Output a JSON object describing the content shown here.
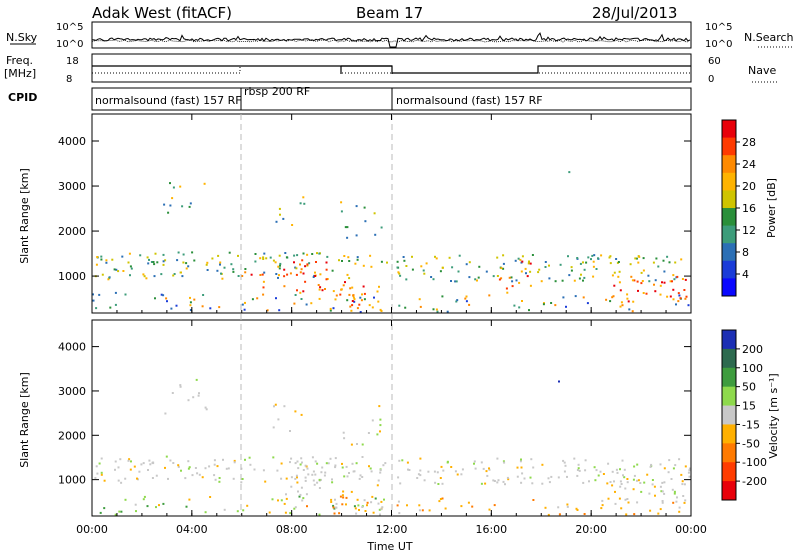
{
  "header": {
    "title": "Adak West (fitACF)",
    "beam": "Beam 17",
    "date": "28/Jul/2013"
  },
  "top_panels": {
    "nsky_label": "N.Sky",
    "nsearch_label": "N.Search",
    "nsky_ticks": [
      "10^5",
      "10^0"
    ],
    "nsearch_ticks": [
      "10^5",
      "10^0"
    ],
    "freq_label": "Freq.",
    "freq_unit": "[MHz]",
    "freq_ticks": [
      "18",
      "8"
    ],
    "nave_label": "Nave",
    "nave_ticks": [
      "60",
      "0"
    ],
    "cpid_label": "CPID",
    "cpid_segments": [
      {
        "label": "normalsound (fast) 157 RF",
        "start_h": 0,
        "end_h": 6
      },
      {
        "label": "rbsp 200 RF",
        "start_h": 6,
        "end_h": 12
      },
      {
        "label": "normalsound (fast) 157 RF",
        "start_h": 12,
        "end_h": 24
      }
    ]
  },
  "power_colorbar": {
    "label": "Power [dB]",
    "ticks": [
      "28",
      "24",
      "20",
      "16",
      "12",
      "8",
      "4"
    ],
    "colors": [
      "#e8000a",
      "#ff3a00",
      "#ff8a00",
      "#ffb300",
      "#cfc400",
      "#2a8f3a",
      "#3c9c7a",
      "#2b6fb5",
      "#1a3cd8",
      "#0a08ff"
    ]
  },
  "velocity_colorbar": {
    "label": "Velocity [m s⁻¹]",
    "ticks": [
      "200",
      "100",
      "50",
      "15",
      "-15",
      "-50",
      "-100",
      "-200"
    ],
    "colors": [
      "#1c2fb4",
      "#2d6a4f",
      "#3e9c3e",
      "#8ed94c",
      "#c8c8c8",
      "#ffb000",
      "#ff7a00",
      "#ff3c00",
      "#e8000a"
    ]
  },
  "chart_data": [
    {
      "type": "heatmap",
      "title": "Power",
      "xlabel": "Time UT",
      "ylabel": "Slant Range [km]",
      "x_ticks": [
        "00:00",
        "04:00",
        "08:00",
        "12:00",
        "16:00",
        "20:00",
        "00:00"
      ],
      "y_ticks": [
        1000,
        2000,
        3000,
        4000
      ],
      "xlim_hours": [
        0,
        24
      ],
      "ylim_km": [
        180,
        4600
      ],
      "colorbar_range_db": [
        0,
        30
      ]
    },
    {
      "type": "heatmap",
      "title": "Velocity",
      "xlabel": "Time UT",
      "ylabel": "Slant Range [km]",
      "x_ticks": [
        "00:00",
        "04:00",
        "08:00",
        "12:00",
        "16:00",
        "20:00",
        "00:00"
      ],
      "y_ticks": [
        1000,
        2000,
        3000,
        4000
      ],
      "xlim_hours": [
        0,
        24
      ],
      "ylim_km": [
        180,
        4600
      ],
      "colorbar_range_ms": [
        -250,
        250
      ]
    }
  ],
  "x_axis": {
    "label": "Time UT",
    "ticks": [
      "00:00",
      "04:00",
      "08:00",
      "12:00",
      "16:00",
      "20:00",
      "00:00"
    ]
  }
}
